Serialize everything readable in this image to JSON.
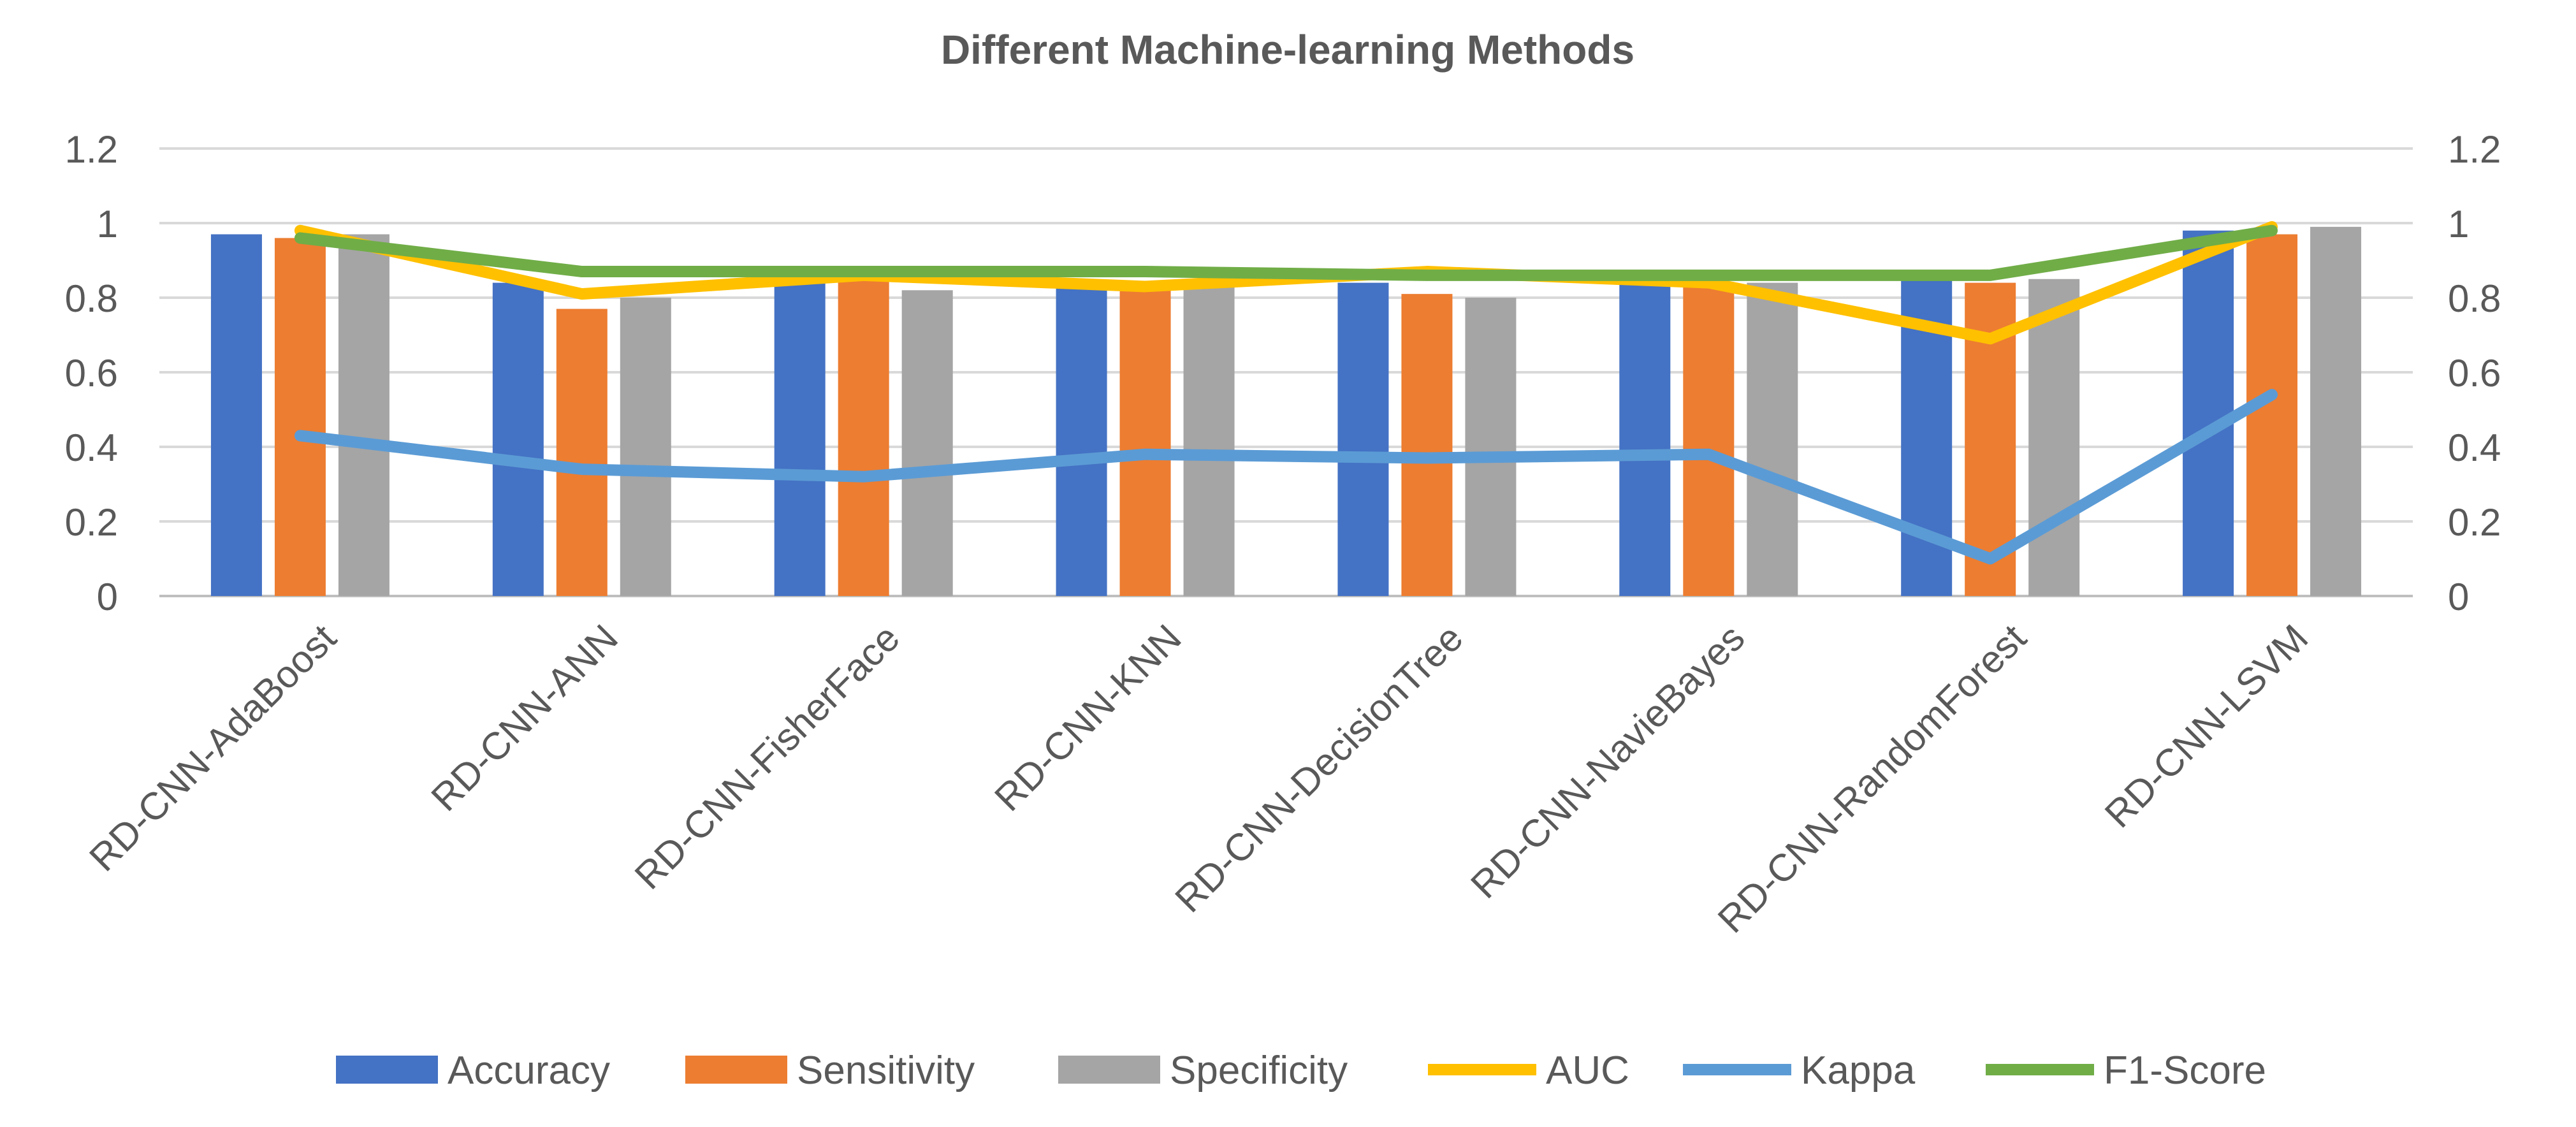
{
  "chart_data": {
    "type": "bar",
    "title": "Different Machine-learning Methods",
    "categories": [
      "RD-CNN-AdaBoost",
      "RD-CNN-ANN",
      "RD-CNN-FisherFace",
      "RD-CNN-KNN",
      "RD-CNN-DecisionTree",
      "RD-CNN-NavieBayes",
      "RD-CNN-RandomForest",
      "RD-CNN-LSVM"
    ],
    "ylim": [
      0,
      1.2
    ],
    "yticks": [
      "0",
      "0.2",
      "0.4",
      "0.6",
      "0.8",
      "1",
      "1.2"
    ],
    "y2ticks": [
      "0",
      "0.2",
      "0.4",
      "0.6",
      "0.8",
      "1",
      "1.2"
    ],
    "grid": true,
    "legend_position": "bottom",
    "bar_series": [
      {
        "name": "Accuracy",
        "color": "#4472C4",
        "values": [
          0.97,
          0.84,
          0.85,
          0.84,
          0.84,
          0.84,
          0.86,
          0.98
        ]
      },
      {
        "name": "Sensitivity",
        "color": "#ED7D31",
        "values": [
          0.96,
          0.77,
          0.85,
          0.84,
          0.81,
          0.84,
          0.84,
          0.97
        ]
      },
      {
        "name": "Specificity",
        "color": "#A5A5A5",
        "values": [
          0.97,
          0.8,
          0.82,
          0.84,
          0.8,
          0.84,
          0.85,
          0.99
        ]
      }
    ],
    "line_series": [
      {
        "name": "AUC",
        "color": "#FFC000",
        "values": [
          0.98,
          0.81,
          0.86,
          0.83,
          0.87,
          0.84,
          0.69,
          0.99
        ]
      },
      {
        "name": "Kappa",
        "color": "#5B9BD5",
        "values": [
          0.43,
          0.34,
          0.32,
          0.38,
          0.37,
          0.38,
          0.1,
          0.54
        ]
      },
      {
        "name": "F1-Score",
        "color": "#70AD47",
        "values": [
          0.96,
          0.87,
          0.87,
          0.87,
          0.86,
          0.86,
          0.86,
          0.98
        ]
      }
    ],
    "legend": [
      "Accuracy",
      "Sensitivity",
      "Specificity",
      "AUC",
      "Kappa",
      "F1-Score"
    ]
  }
}
